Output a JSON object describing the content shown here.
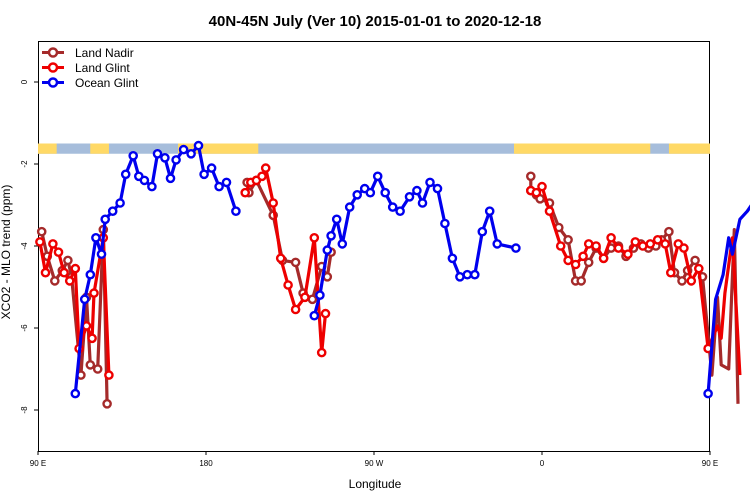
{
  "chart_data": {
    "type": "line",
    "title": "40N-45N July (Ver 10)   2015-01-01 to 2020-12-18",
    "xlabel": "Longitude",
    "ylabel": "XCO2 - MLO trend (ppm)",
    "xlim": [
      90,
      450
    ],
    "ylim": [
      -9,
      1
    ],
    "x_ticks": [
      {
        "value": 90,
        "label": "90 E"
      },
      {
        "value": 180,
        "label": "180"
      },
      {
        "value": 270,
        "label": "90 W"
      },
      {
        "value": 360,
        "label": "0"
      },
      {
        "value": 450,
        "label": "90 E"
      },
      {
        "value": 540,
        "label": "180"
      }
    ],
    "y_ticks": [
      {
        "value": 0,
        "label": "0"
      },
      {
        "value": -2,
        "label": "-2"
      },
      {
        "value": -4,
        "label": "-4"
      },
      {
        "value": -6,
        "label": "-6"
      },
      {
        "value": -8,
        "label": "-8"
      }
    ],
    "legend_position": "top-left",
    "land_mask_band": {
      "y_top": -1.5,
      "y_bottom": -1.75,
      "land_color": "#ffd966",
      "ocean_color": "#a6bddb"
    },
    "series": [
      {
        "name": "Land Nadir",
        "color": "#a52a2a",
        "points": [
          [
            92,
            -3.65
          ],
          [
            95,
            -4.25
          ],
          [
            99,
            -4.85
          ],
          [
            103,
            -4.6
          ],
          [
            106,
            -4.35
          ],
          [
            108,
            -4.75
          ],
          [
            113,
            -7.15
          ],
          [
            116,
            -5.25
          ],
          [
            118,
            -6.9
          ],
          [
            122,
            -7.0
          ],
          [
            125,
            -3.6
          ],
          [
            127,
            -7.85
          ],
          [
            202,
            -2.45
          ],
          [
            203,
            -2.7
          ],
          [
            207,
            -2.4
          ],
          [
            216,
            -3.25
          ],
          [
            221,
            -4.35
          ],
          [
            228,
            -4.4
          ],
          [
            232,
            -5.15
          ],
          [
            237,
            -5.3
          ],
          [
            242,
            -4.5
          ],
          [
            245,
            -4.75
          ],
          [
            247,
            -4.15
          ],
          [
            354,
            -2.3
          ],
          [
            354,
            -2.65
          ],
          [
            357,
            -2.75
          ],
          [
            359,
            -2.85
          ],
          [
            364,
            -2.95
          ],
          [
            369,
            -3.55
          ],
          [
            374,
            -3.85
          ],
          [
            378,
            -4.85
          ],
          [
            381,
            -4.85
          ],
          [
            385,
            -4.4
          ],
          [
            389,
            -4.05
          ],
          [
            393,
            -4.3
          ],
          [
            397,
            -4.05
          ],
          [
            401,
            -4.0
          ],
          [
            405,
            -4.25
          ],
          [
            409,
            -4.05
          ],
          [
            413,
            -3.95
          ],
          [
            417,
            -4.05
          ],
          [
            421,
            -4.0
          ],
          [
            424,
            -3.85
          ],
          [
            428,
            -3.65
          ],
          [
            431,
            -4.65
          ],
          [
            435,
            -4.85
          ],
          [
            438,
            -4.6
          ],
          [
            442,
            -4.35
          ],
          [
            446,
            -4.75
          ],
          [
            451,
            -7.15
          ],
          [
            454,
            -5.25
          ],
          [
            456,
            -6.9
          ],
          [
            460,
            -7.0
          ],
          [
            463,
            -3.6
          ],
          [
            465,
            -7.85
          ]
        ]
      },
      {
        "name": "Land Glint",
        "color": "#ee0000",
        "points": [
          [
            91,
            -3.9
          ],
          [
            94,
            -4.65
          ],
          [
            98,
            -3.95
          ],
          [
            101,
            -4.15
          ],
          [
            104,
            -4.65
          ],
          [
            107,
            -4.85
          ],
          [
            110,
            -4.55
          ],
          [
            112,
            -6.5
          ],
          [
            116,
            -5.95
          ],
          [
            119,
            -6.25
          ],
          [
            120,
            -5.15
          ],
          [
            125,
            -3.8
          ],
          [
            128,
            -7.15
          ],
          [
            201,
            -2.7
          ],
          [
            204,
            -2.45
          ],
          [
            207,
            -2.4
          ],
          [
            210,
            -2.3
          ],
          [
            212,
            -2.1
          ],
          [
            216,
            -2.95
          ],
          [
            220,
            -4.3
          ],
          [
            224,
            -4.95
          ],
          [
            228,
            -5.55
          ],
          [
            233,
            -5.25
          ],
          [
            238,
            -3.8
          ],
          [
            242,
            -6.6
          ],
          [
            244,
            -5.65
          ],
          [
            354,
            -2.65
          ],
          [
            357,
            -2.7
          ],
          [
            360,
            -2.55
          ],
          [
            364,
            -3.15
          ],
          [
            370,
            -4.0
          ],
          [
            374,
            -4.35
          ],
          [
            378,
            -4.45
          ],
          [
            382,
            -4.25
          ],
          [
            385,
            -3.95
          ],
          [
            389,
            -4.0
          ],
          [
            393,
            -4.3
          ],
          [
            397,
            -3.8
          ],
          [
            401,
            -4.05
          ],
          [
            406,
            -4.2
          ],
          [
            410,
            -3.9
          ],
          [
            414,
            -4.0
          ],
          [
            418,
            -3.95
          ],
          [
            422,
            -3.85
          ],
          [
            426,
            -3.95
          ],
          [
            429,
            -4.65
          ],
          [
            433,
            -3.95
          ],
          [
            436,
            -4.05
          ],
          [
            440,
            -4.85
          ],
          [
            444,
            -4.55
          ],
          [
            449,
            -6.5
          ],
          [
            454,
            -5.95
          ],
          [
            456,
            -6.25
          ],
          [
            458,
            -5.15
          ],
          [
            462,
            -3.8
          ],
          [
            466,
            -7.15
          ]
        ]
      },
      {
        "name": "Ocean Glint",
        "color": "#0000ee",
        "points": [
          [
            110,
            -7.6
          ],
          [
            115,
            -5.3
          ],
          [
            118,
            -4.7
          ],
          [
            121,
            -3.8
          ],
          [
            124,
            -4.2
          ],
          [
            126,
            -3.35
          ],
          [
            130,
            -3.15
          ],
          [
            134,
            -2.95
          ],
          [
            137,
            -2.25
          ],
          [
            141,
            -1.8
          ],
          [
            144,
            -2.3
          ],
          [
            147,
            -2.4
          ],
          [
            151,
            -2.55
          ],
          [
            154,
            -1.75
          ],
          [
            158,
            -1.85
          ],
          [
            161,
            -2.35
          ],
          [
            164,
            -1.9
          ],
          [
            168,
            -1.65
          ],
          [
            172,
            -1.75
          ],
          [
            176,
            -1.55
          ],
          [
            179,
            -2.25
          ],
          [
            183,
            -2.1
          ],
          [
            187,
            -2.55
          ],
          [
            191,
            -2.45
          ],
          [
            196,
            -3.15
          ],
          [
            238,
            -5.7
          ],
          [
            241,
            -5.2
          ],
          [
            245,
            -4.1
          ],
          [
            247,
            -3.75
          ],
          [
            250,
            -3.35
          ],
          [
            253,
            -3.95
          ],
          [
            257,
            -3.05
          ],
          [
            261,
            -2.75
          ],
          [
            265,
            -2.6
          ],
          [
            268,
            -2.7
          ],
          [
            272,
            -2.3
          ],
          [
            276,
            -2.7
          ],
          [
            280,
            -3.05
          ],
          [
            284,
            -3.15
          ],
          [
            289,
            -2.8
          ],
          [
            293,
            -2.65
          ],
          [
            296,
            -2.95
          ],
          [
            300,
            -2.45
          ],
          [
            304,
            -2.6
          ],
          [
            308,
            -3.45
          ],
          [
            312,
            -4.3
          ],
          [
            316,
            -4.75
          ],
          [
            320,
            -4.7
          ],
          [
            324,
            -4.7
          ],
          [
            328,
            -3.65
          ],
          [
            332,
            -3.15
          ],
          [
            336,
            -3.95
          ],
          [
            346,
            -4.05
          ],
          [
            449,
            -7.6
          ],
          [
            453,
            -5.3
          ],
          [
            457,
            -4.7
          ],
          [
            460,
            -3.8
          ],
          [
            462,
            -4.2
          ],
          [
            466,
            -3.35
          ],
          [
            470,
            -3.15
          ],
          [
            473,
            -2.95
          ],
          [
            477,
            -2.25
          ],
          [
            480,
            -1.8
          ],
          [
            484,
            -2.3
          ],
          [
            487,
            -2.4
          ]
        ]
      }
    ]
  }
}
